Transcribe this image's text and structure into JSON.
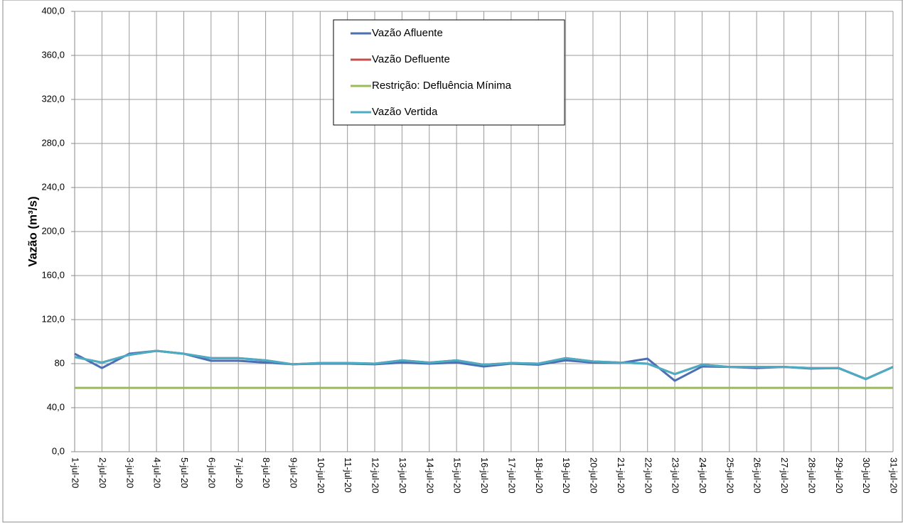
{
  "chart_data": {
    "type": "line",
    "ylabel": "Vazão (m³/s)",
    "categories": [
      "1-jul-20",
      "2-jul-20",
      "3-jul-20",
      "4-jul-20",
      "5-jul-20",
      "6-jul-20",
      "7-jul-20",
      "8-jul-20",
      "9-jul-20",
      "10-jul-20",
      "11-jul-20",
      "12-jul-20",
      "13-jul-20",
      "14-jul-20",
      "15-jul-20",
      "16-jul-20",
      "17-jul-20",
      "18-jul-20",
      "19-jul-20",
      "20-jul-20",
      "21-jul-20",
      "22-jul-20",
      "23-jul-20",
      "24-jul-20",
      "25-jul-20",
      "26-jul-20",
      "27-jul-20",
      "28-jul-20",
      "29-jul-20",
      "30-jul-20",
      "31-jul-20"
    ],
    "series": [
      {
        "name": "Vazão Afluente",
        "color": "#4a6fb5",
        "values": [
          89,
          76,
          89,
          91.6,
          89,
          82.6,
          82.6,
          81,
          79.4,
          80,
          80,
          79.4,
          81,
          80,
          81,
          77.4,
          80,
          79,
          83,
          81,
          80.6,
          84.5,
          64.5,
          77.4,
          77,
          76,
          77,
          75.5,
          76,
          66,
          77
        ]
      },
      {
        "name": "Vazão Defluente",
        "color": "#c0504d",
        "values": [
          86,
          81,
          88,
          91.6,
          89,
          85,
          85,
          83,
          79.4,
          80.6,
          80.6,
          80,
          83,
          81,
          83,
          79,
          80.6,
          80,
          85,
          82,
          81,
          80,
          70.5,
          79,
          77,
          77,
          77,
          76,
          76,
          66,
          77
        ]
      },
      {
        "name": "Restrição: Defluência Mínima",
        "color": "#9bbb59",
        "values": [
          58,
          58,
          58,
          58,
          58,
          58,
          58,
          58,
          58,
          58,
          58,
          58,
          58,
          58,
          58,
          58,
          58,
          58,
          58,
          58,
          58,
          58,
          58,
          58,
          58,
          58,
          58,
          58,
          58,
          58,
          58
        ]
      },
      {
        "name": "Vazão Vertida",
        "color": "#4bacc6",
        "values": [
          86,
          81,
          88,
          91.6,
          89,
          85,
          85,
          83,
          79.4,
          80.6,
          80.6,
          80,
          83,
          81,
          83,
          79,
          80.6,
          80,
          85,
          82,
          81,
          80,
          70.5,
          79,
          77,
          77,
          77,
          76,
          76,
          66,
          77
        ]
      }
    ],
    "ylim": [
      0,
      400
    ],
    "yticks": [
      {
        "value": 0,
        "label": "0,0"
      },
      {
        "value": 40,
        "label": "40,0"
      },
      80,
      {
        "value": 120,
        "label": "120,0"
      },
      {
        "value": 160,
        "label": "160,0"
      },
      {
        "value": 200,
        "label": "200,0"
      },
      {
        "value": 240,
        "label": "240,0"
      },
      {
        "value": 280,
        "label": "280,0"
      },
      {
        "value": 320,
        "label": "320,0"
      },
      {
        "value": 360,
        "label": "360,0"
      },
      {
        "value": 400,
        "label": "400,0"
      }
    ],
    "grid": true,
    "legend": "top"
  }
}
